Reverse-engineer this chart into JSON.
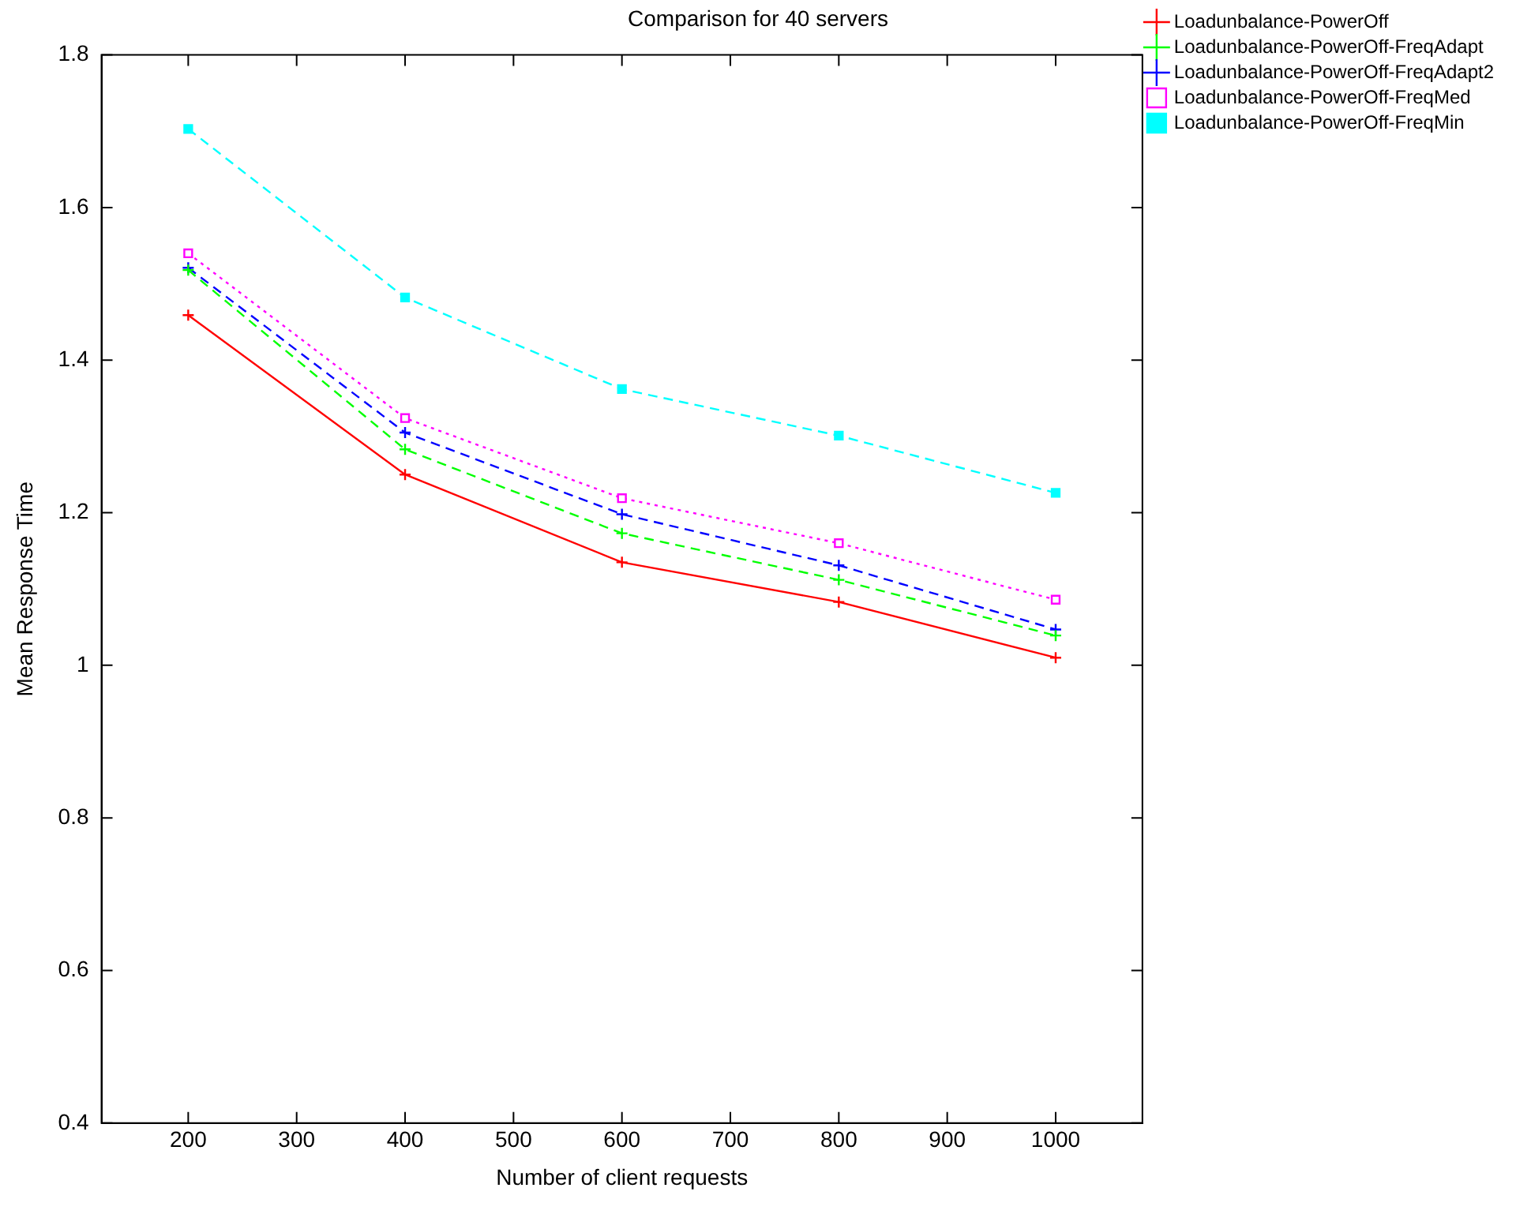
{
  "chart_data": {
    "type": "line",
    "title": "Comparison for 40 servers",
    "xlabel": "Number of client requests",
    "ylabel": "Mean Response Time",
    "x": [
      200,
      400,
      600,
      800,
      1000
    ],
    "series": [
      {
        "name": "Loadunbalance-PowerOff",
        "color": "#ff0000",
        "marker": "cross",
        "line_style": "solid",
        "values": [
          1.459,
          1.25,
          1.135,
          1.083,
          1.01
        ]
      },
      {
        "name": "Loadunbalance-PowerOff-FreqAdapt",
        "color": "#00ff00",
        "marker": "cross",
        "line_style": "dashed",
        "values": [
          1.518,
          1.283,
          1.173,
          1.112,
          1.039
        ]
      },
      {
        "name": "Loadunbalance-PowerOff-FreqAdapt2",
        "color": "#0000ff",
        "marker": "cross",
        "line_style": "dashed",
        "values": [
          1.521,
          1.305,
          1.198,
          1.131,
          1.047
        ]
      },
      {
        "name": "Loadunbalance-PowerOff-FreqMed",
        "color": "#ff00ff",
        "marker": "square",
        "line_style": "dotted",
        "values": [
          1.54,
          1.324,
          1.219,
          1.16,
          1.086
        ]
      },
      {
        "name": "Loadunbalance-PowerOff-FreqMin",
        "color": "#00ffff",
        "marker": "square",
        "line_style": "dashed",
        "values": [
          1.703,
          1.482,
          1.362,
          1.301,
          1.226
        ]
      }
    ],
    "xlim": [
      120,
      1080
    ],
    "xticks": [
      200,
      300,
      400,
      500,
      600,
      700,
      800,
      900,
      1000
    ],
    "ylim": [
      0.4,
      1.8
    ],
    "yticks": [
      0.4,
      0.6,
      0.8,
      1,
      1.2,
      1.4,
      1.6,
      1.8
    ],
    "grid": false,
    "legend": "top right"
  }
}
